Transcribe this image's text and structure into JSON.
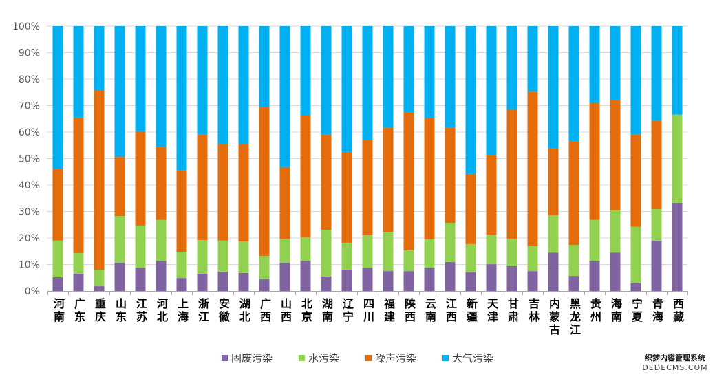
{
  "chart_data": {
    "type": "bar",
    "stacked": "percent",
    "categories": [
      "河南",
      "广东",
      "重庆",
      "山东",
      "江苏",
      "河北",
      "上海",
      "浙江",
      "安徽",
      "湖北",
      "广西",
      "山西",
      "北京",
      "湖南",
      "辽宁",
      "四川",
      "福建",
      "陕西",
      "云南",
      "江西",
      "新疆",
      "天津",
      "甘肃",
      "吉林",
      "内蒙古",
      "黑龙江",
      "贵州",
      "海南",
      "宁夏",
      "青海",
      "西藏"
    ],
    "series": [
      {
        "name": "固废污染",
        "color": "#8064A2",
        "values": [
          5.2,
          6.5,
          1.8,
          10.6,
          8.8,
          11.4,
          4.9,
          6.5,
          7.3,
          6.8,
          4.4,
          10.6,
          11.4,
          5.5,
          8.1,
          8.8,
          7.5,
          7.5,
          8.6,
          10.9,
          7.0,
          10.1,
          9.4,
          7.5,
          14.5,
          5.7,
          11.2,
          14.5,
          2.9,
          19.0,
          33.3
        ]
      },
      {
        "name": "水污染",
        "color": "#92D050",
        "values": [
          13.8,
          7.8,
          6.2,
          17.7,
          15.9,
          15.4,
          9.9,
          12.7,
          11.7,
          11.9,
          8.8,
          9.1,
          8.9,
          17.6,
          10.1,
          12.2,
          14.8,
          7.8,
          10.9,
          14.8,
          10.7,
          11.2,
          10.3,
          9.4,
          14.1,
          11.7,
          15.6,
          15.9,
          21.3,
          11.9,
          33.3
        ]
      },
      {
        "name": "噪声污染",
        "color": "#E46C0A",
        "values": [
          27.0,
          51.2,
          67.6,
          22.3,
          35.6,
          27.7,
          30.7,
          39.8,
          36.6,
          36.9,
          56.4,
          27.1,
          46.2,
          35.9,
          34.3,
          35.9,
          39.5,
          52.2,
          45.7,
          36.1,
          26.5,
          29.9,
          48.9,
          58.2,
          25.2,
          39.2,
          44.1,
          41.8,
          34.8,
          33.5,
          0
        ]
      },
      {
        "name": "大气污染",
        "color": "#00B0F0",
        "values": [
          54.0,
          34.5,
          24.4,
          49.4,
          39.7,
          45.5,
          54.5,
          41.0,
          44.4,
          44.4,
          30.4,
          53.2,
          33.5,
          41.0,
          47.5,
          43.1,
          38.2,
          32.5,
          34.8,
          38.2,
          55.8,
          48.8,
          31.4,
          24.9,
          46.2,
          43.4,
          29.1,
          27.8,
          41.0,
          35.6,
          33.4
        ]
      }
    ],
    "ylim": [
      0,
      100
    ],
    "y_ticks": [
      0,
      10,
      20,
      30,
      40,
      50,
      60,
      70,
      80,
      90,
      100
    ],
    "y_tick_labels": [
      "0%",
      "10%",
      "20%",
      "30%",
      "40%",
      "50%",
      "60%",
      "70%",
      "80%",
      "90%",
      "100%"
    ],
    "grid": true,
    "legend_position": "bottom"
  },
  "watermark": {
    "line1": "织梦内容管理系统",
    "line2": "DEDECMS.COM"
  }
}
